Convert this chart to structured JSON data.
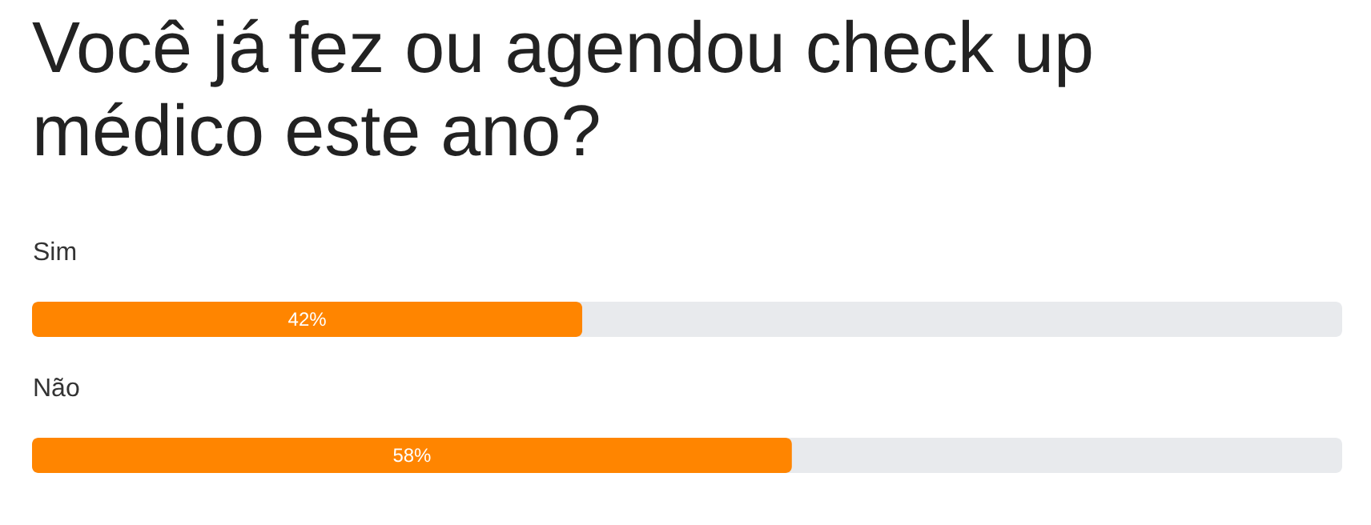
{
  "chart_data": {
    "type": "bar",
    "orientation": "horizontal",
    "title": "Você já fez ou agendou check up médico este ano?",
    "categories": [
      "Sim",
      "Não"
    ],
    "values": [
      42,
      58
    ],
    "value_labels": [
      "42%",
      "58%"
    ],
    "color": "#ff8500",
    "xlim": [
      0,
      100
    ]
  }
}
